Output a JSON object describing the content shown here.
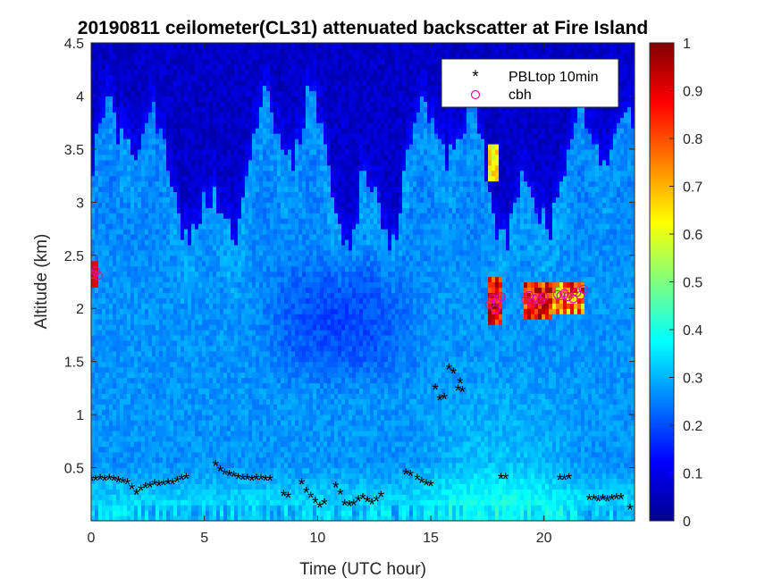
{
  "chart_data": {
    "type": "heatmap",
    "title": "20190811 ceilometer(CL31) attenuated backscatter at Fire Island",
    "xlabel": "Time (UTC hour)",
    "ylabel": "Altitude (km)",
    "xlim": [
      0,
      24
    ],
    "ylim": [
      0,
      4.5
    ],
    "x_ticks": [
      0,
      5,
      10,
      15,
      20
    ],
    "y_ticks": [
      0.5,
      1,
      1.5,
      2,
      2.5,
      3,
      3.5,
      4,
      4.5
    ],
    "colorbar": {
      "colormap": "jet",
      "range": [
        0,
        1
      ],
      "ticks": [
        0,
        0.1,
        0.2,
        0.3,
        0.4,
        0.5,
        0.6,
        0.7,
        0.8,
        0.9,
        1
      ]
    },
    "legend": {
      "position": "top-right"
    },
    "series": [
      {
        "name": "PBLtop 10min",
        "marker": "*",
        "color": "#000000",
        "points": [
          [
            0.0,
            0.36
          ],
          [
            0.2,
            0.36
          ],
          [
            0.4,
            0.37
          ],
          [
            0.6,
            0.36
          ],
          [
            0.8,
            0.37
          ],
          [
            1.0,
            0.36
          ],
          [
            1.2,
            0.35
          ],
          [
            1.4,
            0.34
          ],
          [
            1.6,
            0.33
          ],
          [
            1.8,
            0.28
          ],
          [
            2.0,
            0.23
          ],
          [
            2.2,
            0.27
          ],
          [
            2.4,
            0.29
          ],
          [
            2.6,
            0.3
          ],
          [
            2.8,
            0.32
          ],
          [
            3.0,
            0.31
          ],
          [
            3.2,
            0.32
          ],
          [
            3.4,
            0.33
          ],
          [
            3.6,
            0.33
          ],
          [
            3.8,
            0.35
          ],
          [
            4.0,
            0.37
          ],
          [
            4.2,
            0.38
          ],
          [
            5.5,
            0.5
          ],
          [
            5.7,
            0.45
          ],
          [
            5.9,
            0.42
          ],
          [
            6.1,
            0.41
          ],
          [
            6.3,
            0.4
          ],
          [
            6.5,
            0.38
          ],
          [
            6.7,
            0.37
          ],
          [
            6.9,
            0.37
          ],
          [
            7.1,
            0.36
          ],
          [
            7.3,
            0.37
          ],
          [
            7.5,
            0.37
          ],
          [
            7.7,
            0.36
          ],
          [
            7.9,
            0.36
          ],
          [
            8.5,
            0.22
          ],
          [
            8.7,
            0.2
          ],
          [
            9.3,
            0.33
          ],
          [
            9.5,
            0.25
          ],
          [
            9.7,
            0.2
          ],
          [
            9.9,
            0.15
          ],
          [
            10.1,
            0.11
          ],
          [
            10.3,
            0.14
          ],
          [
            10.8,
            0.3
          ],
          [
            11.0,
            0.23
          ],
          [
            11.2,
            0.13
          ],
          [
            11.4,
            0.12
          ],
          [
            11.6,
            0.13
          ],
          [
            11.8,
            0.17
          ],
          [
            12.0,
            0.19
          ],
          [
            12.2,
            0.16
          ],
          [
            12.4,
            0.14
          ],
          [
            12.6,
            0.17
          ],
          [
            12.8,
            0.21
          ],
          [
            13.9,
            0.42
          ],
          [
            14.1,
            0.41
          ],
          [
            14.4,
            0.37
          ],
          [
            14.6,
            0.34
          ],
          [
            14.8,
            0.32
          ],
          [
            15.0,
            0.31
          ],
          [
            15.2,
            1.22
          ],
          [
            15.4,
            1.12
          ],
          [
            15.6,
            1.13
          ],
          [
            15.8,
            1.41
          ],
          [
            16.0,
            1.37
          ],
          [
            16.2,
            1.21
          ],
          [
            16.3,
            1.28
          ],
          [
            16.4,
            1.2
          ],
          [
            18.1,
            0.38
          ],
          [
            18.3,
            0.38
          ],
          [
            20.7,
            0.37
          ],
          [
            20.9,
            0.37
          ],
          [
            21.1,
            0.38
          ],
          [
            22.0,
            0.18
          ],
          [
            22.2,
            0.18
          ],
          [
            22.4,
            0.17
          ],
          [
            22.6,
            0.18
          ],
          [
            22.8,
            0.17
          ],
          [
            23.0,
            0.18
          ],
          [
            23.2,
            0.19
          ],
          [
            23.4,
            0.19
          ],
          [
            23.8,
            0.09
          ]
        ]
      },
      {
        "name": "cbh",
        "marker": "o",
        "color": "#e0109a",
        "points": [
          [
            0.1,
            2.32
          ],
          [
            0.2,
            2.35
          ],
          [
            0.3,
            2.31
          ],
          [
            17.6,
            2.04
          ],
          [
            17.75,
            2.09
          ],
          [
            17.85,
            1.99
          ],
          [
            17.95,
            2.08
          ],
          [
            18.1,
            2.11
          ],
          [
            19.2,
            2.08
          ],
          [
            19.35,
            2.12
          ],
          [
            19.45,
            2.05
          ],
          [
            19.55,
            2.09
          ],
          [
            19.7,
            2.1
          ],
          [
            19.85,
            2.07
          ],
          [
            20.0,
            2.11
          ],
          [
            20.6,
            2.13
          ],
          [
            20.75,
            2.12
          ],
          [
            20.9,
            2.14
          ],
          [
            21.05,
            2.11
          ],
          [
            21.3,
            2.09
          ],
          [
            21.45,
            2.15
          ],
          [
            21.6,
            2.12
          ],
          [
            21.75,
            2.18
          ]
        ]
      }
    ]
  }
}
